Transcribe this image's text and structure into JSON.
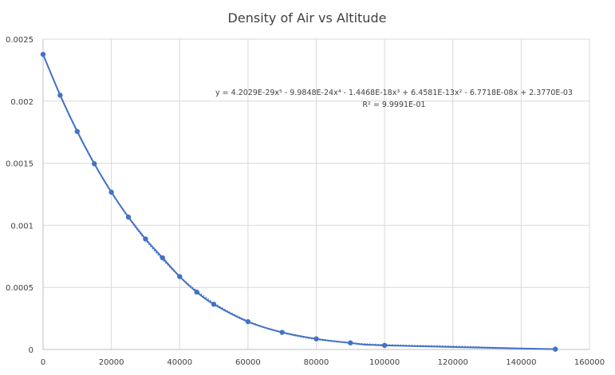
{
  "chart_data": {
    "type": "scatter",
    "title": "Density of Air vs Altitude",
    "xlabel": "",
    "ylabel": "",
    "xlim": [
      0,
      160000
    ],
    "ylim": [
      0,
      0.0025
    ],
    "x_ticks": [
      "0",
      "20000",
      "40000",
      "60000",
      "80000",
      "100000",
      "120000",
      "140000",
      "160000"
    ],
    "y_ticks": [
      "0",
      "0.0005",
      "0.001",
      "0.0015",
      "0.002",
      "0.0025"
    ],
    "x_tick_values": [
      0,
      20000,
      40000,
      60000,
      80000,
      100000,
      120000,
      140000,
      160000
    ],
    "y_tick_values": [
      0,
      0.0005,
      0.001,
      0.0015,
      0.002,
      0.0025
    ],
    "grid": true,
    "legend": "none",
    "series": [
      {
        "color": "#4472c4",
        "x": [
          0,
          5000,
          10000,
          15000,
          20000,
          25000,
          30000,
          35000,
          40000,
          45000,
          50000,
          60000,
          70000,
          80000,
          90000,
          100000,
          150000
        ],
        "y": [
          0.002377,
          0.002048,
          0.001756,
          0.001496,
          0.001267,
          0.001066,
          0.00089,
          0.000738,
          0.000587,
          0.000462,
          0.000364,
          0.000224,
          0.000138,
          8.56e-05,
          5.33e-05,
          3.31e-05,
          2.4e-06
        ]
      }
    ],
    "trendline": {
      "kind": "polynomial",
      "order": 5,
      "style": "dotted",
      "coefficients": [
        4.2029e-29,
        -9.9848e-24,
        -1.4468e-18,
        6.4581e-13,
        -6.7718e-08,
        0.002377
      ],
      "equation_label": "y = 4.2029E-29x⁵ - 9.9848E-24x⁴ - 1.4468E-18x³ + 6.4581E-13x² - 6.7718E-08x + 2.3770E-03",
      "r2_label": "R² = 9.9991E-01"
    }
  }
}
